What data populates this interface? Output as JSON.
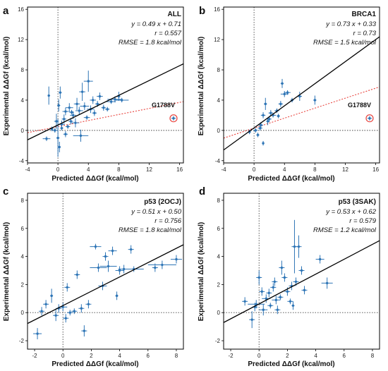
{
  "chart_data": [
    {
      "type": "scatter",
      "panel_label": "a",
      "title": "ALL",
      "stats": [
        "y = 0.49 x + 0.71",
        "r = 0.557",
        "RMSE = 1.8 kcal/mol"
      ],
      "xlabel": "Predicted ΔΔGf (kcal/mol)",
      "ylabel": "Experimental ΔΔGf (kcal/mol)",
      "xlim": [
        -4,
        16.5
      ],
      "ylim": [
        -4.3,
        16.3
      ],
      "xticks": [
        -4,
        0,
        4,
        8,
        12,
        16
      ],
      "yticks": [
        -4,
        0,
        4,
        8,
        12,
        16
      ],
      "fit_line": {
        "slope": 0.49,
        "intercept": 0.71
      },
      "dotted_line": {
        "slope": 0.2,
        "intercept": 0.5
      },
      "annotation": {
        "label": "G1788V",
        "x": 15.2,
        "y": 1.6
      },
      "colors": {
        "points": "#2e75b6",
        "fit": "#000000",
        "dotted": "#e8423c"
      },
      "points": [
        [
          -1.2,
          4.6,
          0.15,
          1.2
        ],
        [
          0.3,
          5.0,
          0.2,
          0.8
        ],
        [
          0.1,
          3.3,
          0.2,
          0.8
        ],
        [
          -0.2,
          1.2,
          0.3,
          1.0
        ],
        [
          0.0,
          -1.0,
          0.2,
          2.5
        ],
        [
          0.2,
          -2.2,
          0.1,
          0.7
        ],
        [
          0.5,
          0.8,
          0.4,
          0.5
        ],
        [
          0.8,
          1.5,
          0.3,
          0.6
        ],
        [
          1.0,
          2.5,
          0.4,
          0.5
        ],
        [
          1.5,
          3.0,
          0.5,
          0.6
        ],
        [
          1.7,
          1.2,
          0.3,
          0.4
        ],
        [
          2.0,
          2.0,
          0.4,
          0.5
        ],
        [
          2.3,
          1.0,
          0.5,
          0.6
        ],
        [
          2.5,
          3.5,
          0.4,
          0.8
        ],
        [
          2.8,
          2.6,
          0.5,
          0.5
        ],
        [
          3.2,
          5.1,
          0.4,
          1.2
        ],
        [
          3.5,
          3.2,
          0.6,
          0.5
        ],
        [
          4.0,
          6.5,
          0.6,
          1.4
        ],
        [
          4.3,
          2.8,
          0.5,
          0.5
        ],
        [
          4.6,
          4.0,
          0.4,
          0.5
        ],
        [
          5.2,
          3.5,
          0.3,
          0.4
        ],
        [
          5.5,
          4.5,
          0.4,
          0.5
        ],
        [
          6.0,
          3.0,
          0.3,
          0.4
        ],
        [
          6.5,
          2.8,
          0.3,
          0.3
        ],
        [
          7.0,
          3.8,
          0.6,
          0.3
        ],
        [
          7.5,
          4.1,
          1.0,
          0.4
        ],
        [
          8.0,
          4.5,
          0.2,
          0.6
        ],
        [
          8.4,
          4.0,
          0.9,
          0.3
        ],
        [
          3.0,
          -0.7,
          1.0,
          0.8
        ],
        [
          1.0,
          -0.5,
          0.3,
          0.4
        ],
        [
          -0.4,
          0.0,
          0.3,
          0.3
        ],
        [
          -0.8,
          0.2,
          0.2,
          0.3
        ],
        [
          -1.5,
          -1.1,
          0.5,
          0.3
        ],
        [
          0.5,
          0.3,
          0.2,
          0.3
        ],
        [
          1.3,
          0.5,
          0.3,
          0.3
        ],
        [
          1.8,
          2.4,
          0.3,
          0.3
        ],
        [
          3.8,
          1.7,
          0.4,
          0.3
        ],
        [
          4.8,
          2.3,
          0.3,
          0.4
        ],
        [
          15.2,
          1.6,
          0.3,
          0.3
        ]
      ]
    },
    {
      "type": "scatter",
      "panel_label": "b",
      "title": "BRCA1",
      "stats": [
        "y = 0.73 x + 0.33",
        "r = 0.73",
        "RMSE = 1.5 kcal/mol"
      ],
      "xlabel": "Predicted ΔΔGf (kcal/mol)",
      "ylabel": "Experimental ΔΔGf (kcal/mol)",
      "xlim": [
        -4,
        16.5
      ],
      "ylim": [
        -4.3,
        16.3
      ],
      "xticks": [
        -4,
        0,
        4,
        8,
        12,
        16
      ],
      "yticks": [
        -4,
        0,
        4,
        8,
        12,
        16
      ],
      "fit_line": {
        "slope": 0.73,
        "intercept": 0.33
      },
      "dotted_line": {
        "slope": 0.33,
        "intercept": 0.3
      },
      "annotation": {
        "label": "G1788V",
        "x": 15.2,
        "y": 1.6
      },
      "colors": {
        "points": "#2e75b6",
        "fit": "#000000",
        "dotted": "#e8423c"
      },
      "points": [
        [
          0.2,
          0.0,
          0.3,
          0.3
        ],
        [
          0.5,
          -0.6,
          0.2,
          0.3
        ],
        [
          0.9,
          0.7,
          0.3,
          0.4
        ],
        [
          1.2,
          2.0,
          0.3,
          0.4
        ],
        [
          1.5,
          3.5,
          0.2,
          0.8
        ],
        [
          1.8,
          1.2,
          0.2,
          0.5
        ],
        [
          2.0,
          1.5,
          0.3,
          0.4
        ],
        [
          2.2,
          2.3,
          0.3,
          0.4
        ],
        [
          2.5,
          2.0,
          0.4,
          0.3
        ],
        [
          3.0,
          2.6,
          0.3,
          0.3
        ],
        [
          3.5,
          3.5,
          0.3,
          0.4
        ],
        [
          3.7,
          6.2,
          0.2,
          0.6
        ],
        [
          4.0,
          4.8,
          0.5,
          0.4
        ],
        [
          4.4,
          5.0,
          0.4,
          0.3
        ],
        [
          3.2,
          1.9,
          0.2,
          0.3
        ],
        [
          1.2,
          -1.7,
          0.1,
          0.3
        ],
        [
          -0.6,
          -0.2,
          0.2,
          0.3
        ],
        [
          5.0,
          4.0,
          0.2,
          0.3
        ],
        [
          6.0,
          4.5,
          0.3,
          0.6
        ],
        [
          8.0,
          4.0,
          0.2,
          0.6
        ],
        [
          0.8,
          0.3,
          0.3,
          0.3
        ],
        [
          15.2,
          1.6,
          0.3,
          0.3
        ]
      ]
    },
    {
      "type": "scatter",
      "panel_label": "c",
      "title": "p53 (2OCJ)",
      "stats": [
        "y = 0.51 x + 0.50",
        "r = 0.756",
        "RMSE = 1.8 kcal/mol"
      ],
      "xlabel": "Predicted ΔΔGf (kcal/mol)",
      "ylabel": "Experimental ΔΔGf (kcal/mol)",
      "xlim": [
        -2.5,
        8.5
      ],
      "ylim": [
        -2.6,
        8.5
      ],
      "xticks": [
        -2,
        0,
        2,
        4,
        6,
        8
      ],
      "yticks": [
        -2,
        0,
        2,
        4,
        6,
        8
      ],
      "fit_line": {
        "slope": 0.51,
        "intercept": 0.5
      },
      "colors": {
        "points": "#2e75b6",
        "fit": "#000000"
      },
      "points": [
        [
          -1.8,
          -1.5,
          0.3,
          0.4
        ],
        [
          -1.5,
          0.1,
          0.2,
          0.3
        ],
        [
          -1.2,
          0.6,
          0.2,
          0.3
        ],
        [
          -0.8,
          1.2,
          0.1,
          0.5
        ],
        [
          -0.5,
          -0.2,
          0.2,
          0.4
        ],
        [
          -0.3,
          0.3,
          0.2,
          0.3
        ],
        [
          0.0,
          0.4,
          0.3,
          0.3
        ],
        [
          0.2,
          -0.4,
          0.2,
          0.3
        ],
        [
          0.3,
          1.8,
          0.2,
          0.3
        ],
        [
          0.5,
          0.0,
          0.2,
          0.2
        ],
        [
          0.8,
          0.1,
          0.2,
          0.2
        ],
        [
          1.0,
          2.7,
          0.2,
          0.3
        ],
        [
          1.3,
          0.3,
          0.2,
          0.3
        ],
        [
          1.5,
          -1.3,
          0.2,
          0.4
        ],
        [
          1.8,
          0.6,
          0.2,
          0.3
        ],
        [
          2.3,
          4.7,
          0.4,
          0.2
        ],
        [
          2.5,
          3.2,
          0.6,
          0.3
        ],
        [
          2.8,
          1.9,
          0.3,
          0.3
        ],
        [
          3.0,
          4.0,
          0.2,
          0.3
        ],
        [
          3.2,
          3.3,
          0.6,
          0.4
        ],
        [
          3.5,
          4.4,
          0.3,
          0.3
        ],
        [
          3.8,
          1.2,
          0.1,
          0.3
        ],
        [
          4.0,
          3.0,
          0.3,
          0.3
        ],
        [
          4.3,
          3.1,
          0.4,
          0.3
        ],
        [
          4.8,
          4.5,
          0.2,
          0.3
        ],
        [
          5.0,
          3.1,
          0.7,
          0.2
        ],
        [
          6.5,
          3.2,
          0.2,
          0.3
        ],
        [
          7.0,
          3.4,
          1.0,
          0.3
        ],
        [
          8.0,
          3.8,
          0.4,
          0.3
        ]
      ]
    },
    {
      "type": "scatter",
      "panel_label": "d",
      "title": "p53 (3SAK)",
      "stats": [
        "y = 0.53 x + 0.62",
        "r = 0.579",
        "RMSE = 1.2 kcal/mol"
      ],
      "xlabel": "Predicted ΔΔGf (kcal/mol)",
      "ylabel": "Experimental ΔΔGf (kcal/mol)",
      "xlim": [
        -2.5,
        8.5
      ],
      "ylim": [
        -2.6,
        8.5
      ],
      "xticks": [
        -2,
        0,
        2,
        4,
        6,
        8
      ],
      "yticks": [
        -2,
        0,
        2,
        4,
        6,
        8
      ],
      "fit_line": {
        "slope": 0.53,
        "intercept": 0.62
      },
      "colors": {
        "points": "#2e75b6",
        "fit": "#000000"
      },
      "points": [
        [
          -1.0,
          0.8,
          0.2,
          0.3
        ],
        [
          -0.5,
          -0.5,
          0.2,
          0.6
        ],
        [
          -0.3,
          0.4,
          0.2,
          0.3
        ],
        [
          0.0,
          2.5,
          0.2,
          0.5
        ],
        [
          0.2,
          1.5,
          0.2,
          0.3
        ],
        [
          0.3,
          0.2,
          0.3,
          0.4
        ],
        [
          0.5,
          1.0,
          0.3,
          0.3
        ],
        [
          0.7,
          1.4,
          0.2,
          0.3
        ],
        [
          0.8,
          0.5,
          0.2,
          0.2
        ],
        [
          1.0,
          1.8,
          0.2,
          0.3
        ],
        [
          1.2,
          0.9,
          0.3,
          0.3
        ],
        [
          1.3,
          0.2,
          0.2,
          0.3
        ],
        [
          1.5,
          1.1,
          0.2,
          0.2
        ],
        [
          1.6,
          3.2,
          0.2,
          0.5
        ],
        [
          1.8,
          2.5,
          0.2,
          0.3
        ],
        [
          2.0,
          1.5,
          0.2,
          0.3
        ],
        [
          2.2,
          0.8,
          0.2,
          0.2
        ],
        [
          2.3,
          1.9,
          0.2,
          0.3
        ],
        [
          2.5,
          4.7,
          0.2,
          1.9
        ],
        [
          2.6,
          2.2,
          0.2,
          0.3
        ],
        [
          2.8,
          4.7,
          0.2,
          0.8
        ],
        [
          3.0,
          3.0,
          0.2,
          0.3
        ],
        [
          3.2,
          1.6,
          0.2,
          0.3
        ],
        [
          4.3,
          3.8,
          0.3,
          0.3
        ],
        [
          4.8,
          2.1,
          0.4,
          0.4
        ],
        [
          2.4,
          0.5,
          0.1,
          0.3
        ],
        [
          1.1,
          2.2,
          0.2,
          0.3
        ],
        [
          -0.2,
          0.6,
          0.6,
          0.3
        ]
      ]
    }
  ]
}
